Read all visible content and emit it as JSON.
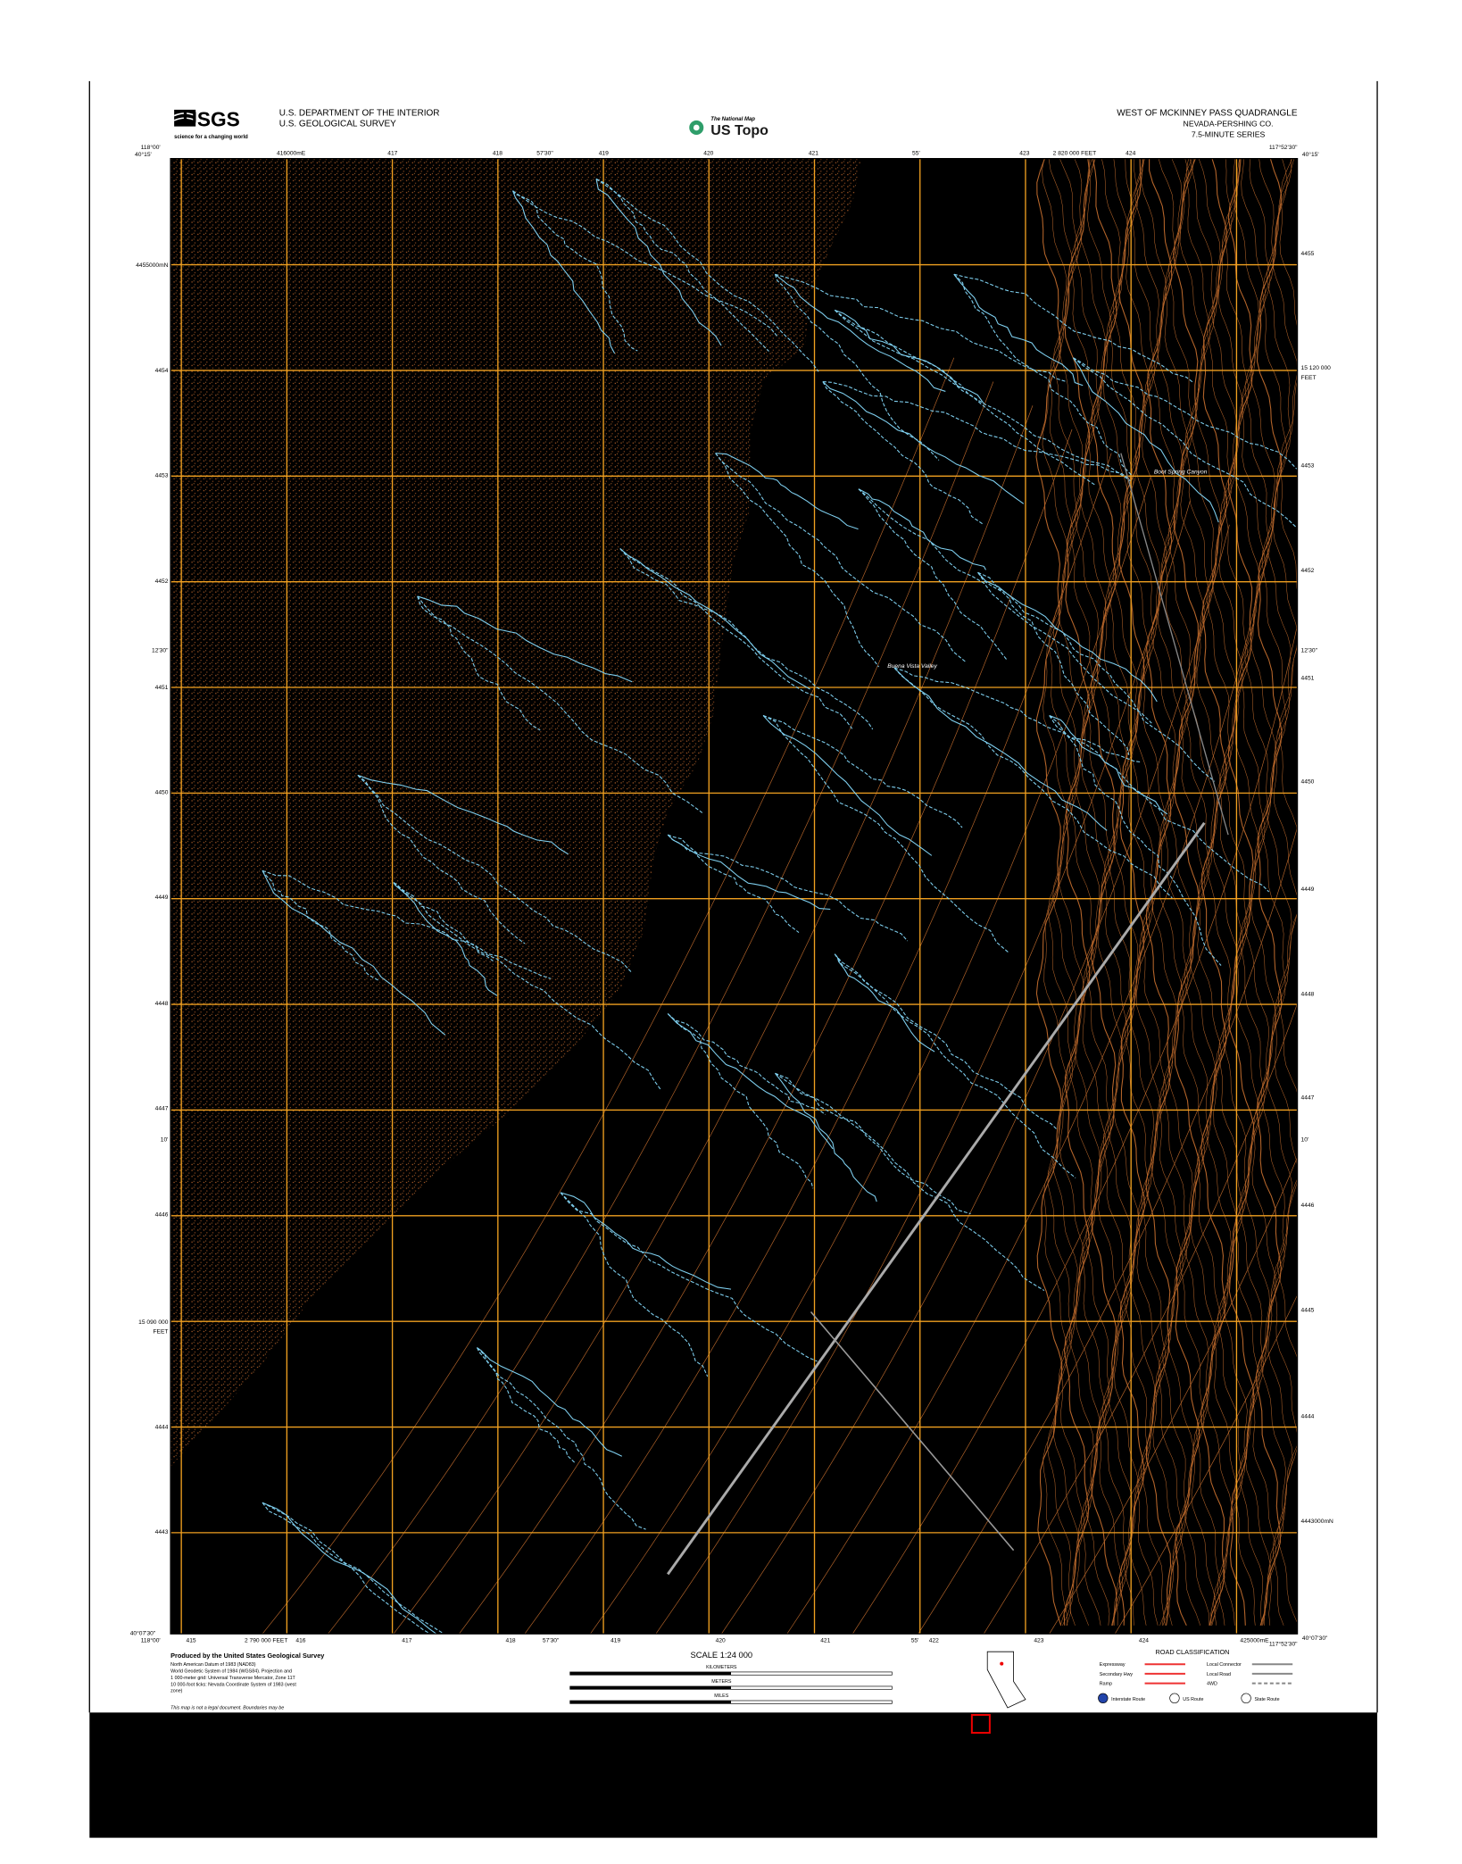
{
  "header": {
    "logo": "USGS",
    "tagline": "science for a changing world",
    "agency": [
      "U.S. DEPARTMENT OF THE INTERIOR",
      "U.S. GEOLOGICAL SURVEY"
    ],
    "national_map": "The National Map",
    "us_topo": "US Topo",
    "quad_title": "WEST OF MCKINNEY PASS QUADRANGLE",
    "county": "NEVADA-PERSHING CO.",
    "series": "7.5-MINUTE SERIES"
  },
  "map": {
    "corners": {
      "nw_lat": "40°15'",
      "nw_lon": "118°00'",
      "ne_lat": "40°15'",
      "ne_lon": "117°52'30\"",
      "sw_lat": "40°07'30\"",
      "sw_lon": "118°00'",
      "se_lat": "40°07'30\"",
      "se_lon": "117°52'30\""
    },
    "top_labels": [
      "416000mE",
      "417",
      "418",
      "57'30\"",
      "419",
      "420",
      "421",
      "55'",
      "2 820 000 FEET",
      "423",
      "424"
    ],
    "bottom_labels": [
      "415",
      "2 790 000 FEET",
      "416",
      "417",
      "418",
      "57'30\"",
      "419",
      "420",
      "421",
      "55'",
      "422",
      "423",
      "424",
      "425000mE"
    ],
    "left_labels": [
      "4455000mN",
      "4454",
      "4453",
      "4452",
      "12'30\"",
      "4451",
      "4450",
      "4449",
      "4448",
      "4447",
      "10'",
      "4446",
      "15 090 000",
      "FEET",
      "4444",
      "4443"
    ],
    "right_labels": [
      "4455",
      "15 120 000",
      "FEET",
      "4453",
      "4452",
      "12'30\"",
      "4451",
      "4450",
      "4449",
      "4448",
      "4447",
      "10'",
      "4446",
      "4445",
      "4444",
      "4443000mN"
    ],
    "features": [
      "Boot Spring Canyon",
      "Buena Vista Valley"
    ]
  },
  "footer": {
    "produced": "Produced by the United States Geological Survey",
    "credits": [
      "North American Datum of 1983 (NAD83)",
      "World Geodetic System of 1984 (WGS84). Projection and",
      "1 000-meter grid: Universal Transverse Mercator, Zone 11T",
      "10 000-foot ticks: Nevada Coordinate System of 1983 (west",
      "zone)"
    ],
    "legal": "This map is not a legal document. Boundaries may be",
    "scale": "SCALE 1:24 000",
    "units": [
      "KILOMETERS",
      "METERS",
      "MILES"
    ],
    "road_title": "ROAD CLASSIFICATION",
    "roads": [
      "Expressway",
      "Secondary Hwy",
      "Ramp",
      "Local Connector",
      "Local Road",
      "4WD"
    ],
    "routes": [
      "Interstate Route",
      "US Route",
      "State Route"
    ]
  }
}
